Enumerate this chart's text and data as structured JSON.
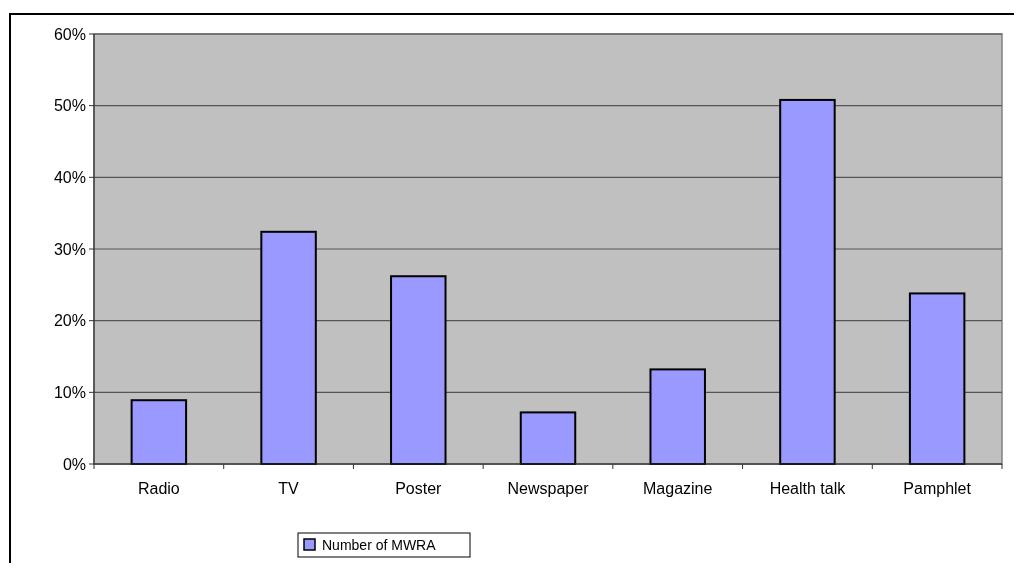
{
  "chart_data": {
    "type": "bar",
    "categories": [
      "Radio",
      "TV",
      "Poster",
      "Newspaper",
      "Magazine",
      "Health talk",
      "Pamphlet"
    ],
    "series": [
      {
        "name": "Number of MWRA",
        "color": "#9999ff",
        "values": [
          8.9,
          32.4,
          26.2,
          7.2,
          13.2,
          50.8,
          23.8
        ]
      }
    ],
    "ylim": [
      0,
      60
    ],
    "yticks": [
      {
        "value": 0,
        "label": "0%"
      },
      {
        "value": 10,
        "label": "10%"
      },
      {
        "value": 20,
        "label": "20%"
      },
      {
        "value": 30,
        "label": "30%"
      },
      {
        "value": 40,
        "label": "40%"
      },
      {
        "value": 50,
        "label": "50%"
      },
      {
        "value": 60,
        "label": "60%"
      }
    ],
    "grid": "y",
    "legend": "bottom"
  }
}
